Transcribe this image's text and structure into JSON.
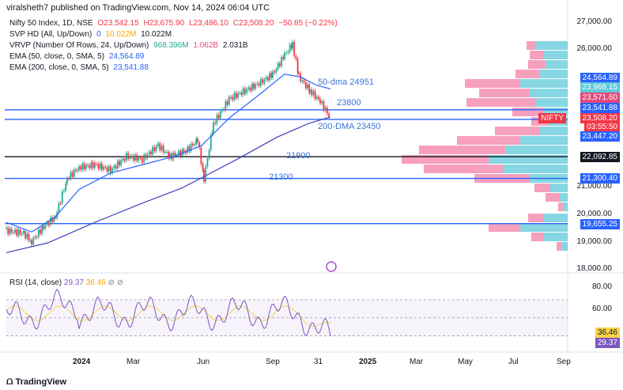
{
  "header": {
    "text": "viralsheth7 published on TradingView.com, Nov 14, 2024 06:04 UTC"
  },
  "legend": {
    "symbol": "Nifty 50 Index, 1D, NSE",
    "o": "O23,542.15",
    "h": "H23,675.90",
    "l": "L23,486.10",
    "c": "C23,508.20",
    "chg": "−50.85 (−0.22%)",
    "svp_name": "SVP HD (All, Up/Down)",
    "svp_v1": "0",
    "svp_v2": "10.022M",
    "svp_v3": "10.022M",
    "vrvp_name": "VRVP (Number Of Rows, 24, Up/Down)",
    "vrvp_v1": "968.396M",
    "vrvp_v2": "1.062B",
    "vrvp_v3": "2.031B",
    "ema50_name": "EMA (50, close, 0, SMA, 5)",
    "ema50_val": "24,564.89",
    "ema200_name": "EMA (200, close, 0, SMA, 5)",
    "ema200_val": "23,541.88"
  },
  "annotations": {
    "dma50": "50-dma 24951",
    "l23800": "23800",
    "dma200": "200-DMA 23450",
    "l21900": "21900",
    "l21300": "21300"
  },
  "price_axis": [
    "27,000.00",
    "26,000.00",
    "21,000.00",
    "20,000.00",
    "19,000.00",
    "18,000.00"
  ],
  "price_labels": {
    "ema50": "24,564.89",
    "p23968": "23,968.15",
    "p23571": "23,571.60",
    "ema200": "23,541.88",
    "nifty": "NIFTY",
    "last": "23,508.20",
    "countdown": "03:55:50",
    "p23447": "23,447.20",
    "p22092": "22,092.85",
    "p21300": "21,300.40",
    "p19655": "19,655.25"
  },
  "rsi": {
    "name": "RSI (14, close)",
    "v1": "29.37",
    "v2": "36.46",
    "axis": [
      "80.00",
      "60.00"
    ],
    "label_ma": "36.46",
    "label_rsi": "29.37"
  },
  "time_axis": [
    "2024",
    "Mar",
    "Jun",
    "Sep",
    "31",
    "2025",
    "Mar",
    "May",
    "Jul",
    "Sep"
  ],
  "footer": {
    "brand": "TradingView"
  },
  "colors": {
    "up": "#22ab94",
    "down": "#f23645",
    "ema50": "#2962ff",
    "ema200": "#3f3fbf",
    "hline": "#2962ff",
    "rsi": "#7e57c2",
    "rsi_ma": "#f7d34a"
  },
  "chart_data": {
    "type": "candlestick",
    "price_range": [
      17800,
      27400
    ],
    "horizontal_levels": [
      23800,
      23450,
      22092.85,
      21300,
      19655
    ],
    "last_price": 23508.2,
    "rsi_range": [
      20,
      90
    ]
  }
}
